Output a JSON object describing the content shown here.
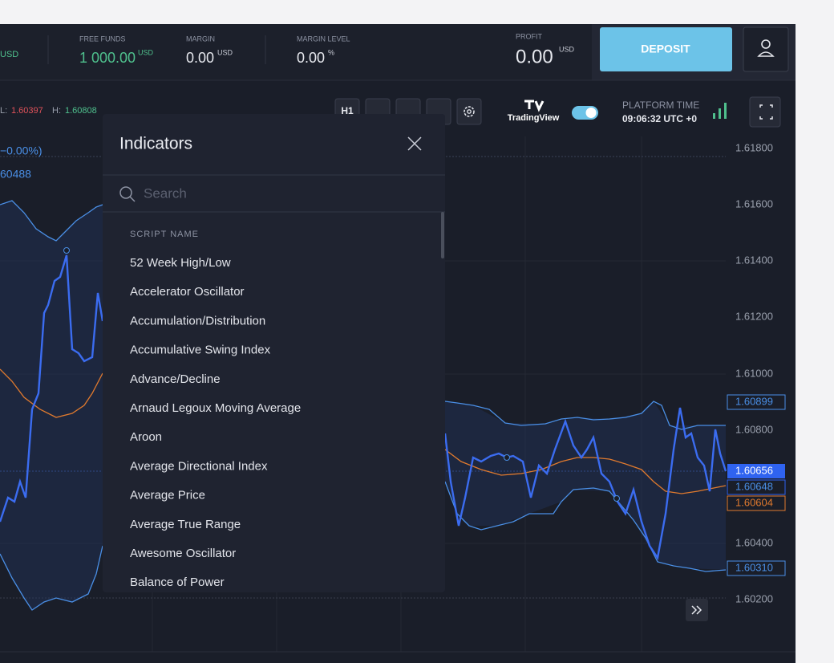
{
  "account_bar": {
    "balance_currency": "USD",
    "free_funds": {
      "label": "FREE FUNDS",
      "value": "1 000.00",
      "currency": "USD"
    },
    "margin": {
      "label": "MARGIN",
      "value": "0.00",
      "currency": "USD"
    },
    "margin_level": {
      "label": "MARGIN LEVEL",
      "value": "0.00",
      "unit": "%"
    },
    "profit": {
      "label": "PROFIT",
      "value": "0.00",
      "currency": "USD"
    },
    "deposit_button": "DEPOSIT"
  },
  "toolbar": {
    "low_label": "L:",
    "low": "1.60397",
    "high_label": "H:",
    "high": "1.60808",
    "timeframe": "H1",
    "brand": "TradingView",
    "platform_time_label": "PLATFORM TIME",
    "platform_time": "09:06:32 UTC +0"
  },
  "chart": {
    "change": "−0.00%)",
    "last_price": "60488",
    "price_scale": [
      "1.61800",
      "1.61600",
      "1.61400",
      "1.61200",
      "1.61000",
      "1.60800",
      "1.60400",
      "1.60200"
    ],
    "price_badges": [
      "1.60899",
      "1.60656",
      "1.60648",
      "1.60604",
      "1.60310"
    ]
  },
  "indicators_dialog": {
    "title": "Indicators",
    "search_placeholder": "Search",
    "column_header": "SCRIPT NAME",
    "scripts": [
      "52 Week High/Low",
      "Accelerator Oscillator",
      "Accumulation/Distribution",
      "Accumulative Swing Index",
      "Advance/Decline",
      "Arnaud Legoux Moving Average",
      "Aroon",
      "Average Directional Index",
      "Average Price",
      "Average True Range",
      "Awesome Oscillator",
      "Balance of Power"
    ]
  }
}
